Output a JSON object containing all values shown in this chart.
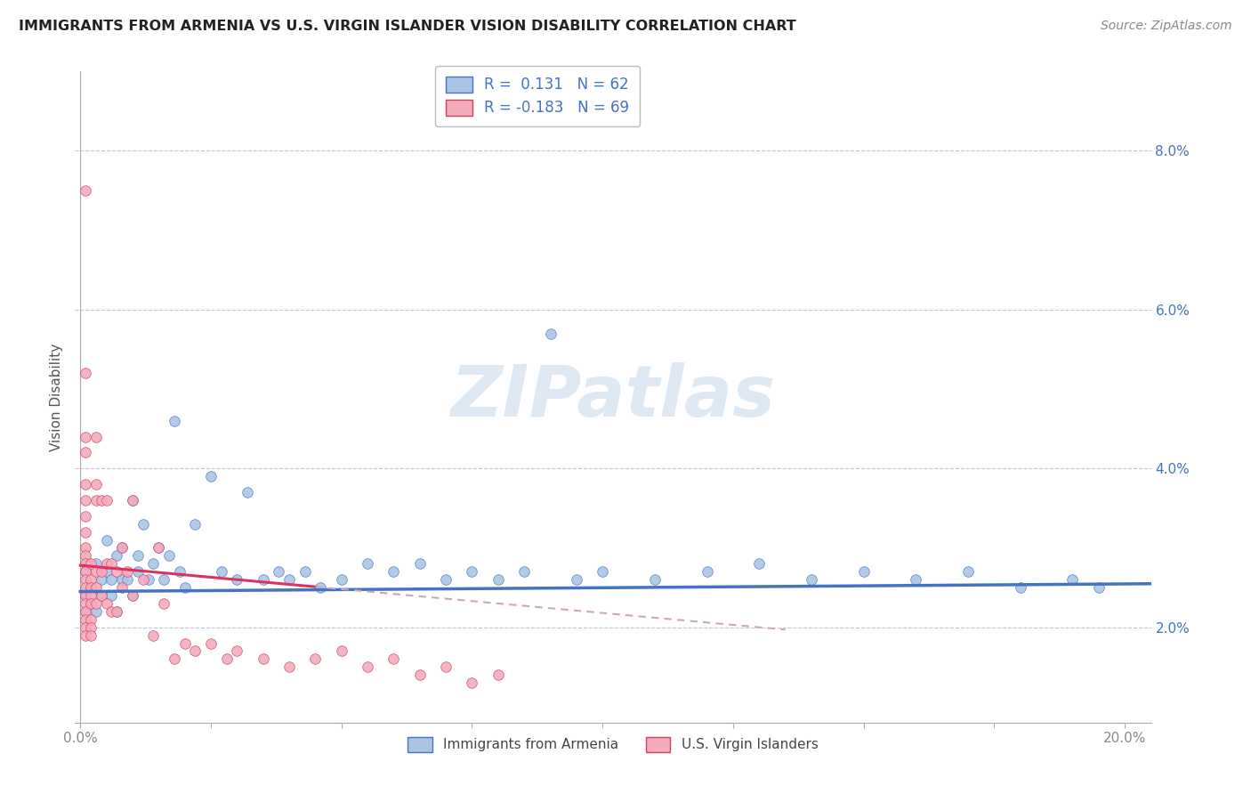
{
  "title": "IMMIGRANTS FROM ARMENIA VS U.S. VIRGIN ISLANDER VISION DISABILITY CORRELATION CHART",
  "source": "Source: ZipAtlas.com",
  "ylabel": "Vision Disability",
  "xlim": [
    -0.001,
    0.205
  ],
  "ylim": [
    0.008,
    0.09
  ],
  "xticks": [
    0.0,
    0.025,
    0.05,
    0.075,
    0.1,
    0.125,
    0.15,
    0.175,
    0.2
  ],
  "xtick_labels_shown": {
    "0.0": "0.0%",
    "0.20": "20.0%"
  },
  "yticks": [
    0.02,
    0.04,
    0.06,
    0.08
  ],
  "ytick_labels": [
    "2.0%",
    "4.0%",
    "6.0%",
    "8.0%"
  ],
  "blue_face_color": "#aac4e4",
  "blue_edge_color": "#4472c4",
  "pink_face_color": "#f4aabb",
  "pink_edge_color": "#d04060",
  "blue_line_color": "#4472c4",
  "pink_line_color": "#e03060",
  "gray_dash_color": "#ccaaaa",
  "legend_R_blue": "R =  0.131",
  "legend_N_blue": "N = 62",
  "legend_R_pink": "R = -0.183",
  "legend_N_pink": "N = 69",
  "blue_intercept": 0.0245,
  "blue_slope": 0.0048,
  "pink_intercept": 0.0278,
  "pink_slope": -0.06,
  "watermark": "ZIPatlas",
  "watermark_color": "#c0d4e8",
  "background_color": "#ffffff",
  "blue_x": [
    0.001,
    0.001,
    0.001,
    0.002,
    0.002,
    0.003,
    0.003,
    0.004,
    0.004,
    0.005,
    0.005,
    0.006,
    0.006,
    0.007,
    0.007,
    0.008,
    0.008,
    0.009,
    0.01,
    0.01,
    0.011,
    0.011,
    0.012,
    0.013,
    0.014,
    0.015,
    0.016,
    0.017,
    0.018,
    0.019,
    0.02,
    0.022,
    0.025,
    0.027,
    0.03,
    0.032,
    0.035,
    0.038,
    0.04,
    0.043,
    0.046,
    0.05,
    0.055,
    0.06,
    0.065,
    0.07,
    0.075,
    0.08,
    0.085,
    0.09,
    0.095,
    0.1,
    0.11,
    0.12,
    0.13,
    0.14,
    0.15,
    0.16,
    0.17,
    0.18,
    0.19,
    0.195
  ],
  "blue_y": [
    0.027,
    0.024,
    0.022,
    0.025,
    0.023,
    0.028,
    0.022,
    0.026,
    0.024,
    0.031,
    0.027,
    0.026,
    0.024,
    0.029,
    0.022,
    0.026,
    0.03,
    0.026,
    0.036,
    0.024,
    0.027,
    0.029,
    0.033,
    0.026,
    0.028,
    0.03,
    0.026,
    0.029,
    0.046,
    0.027,
    0.025,
    0.033,
    0.039,
    0.027,
    0.026,
    0.037,
    0.026,
    0.027,
    0.026,
    0.027,
    0.025,
    0.026,
    0.028,
    0.027,
    0.028,
    0.026,
    0.027,
    0.026,
    0.027,
    0.057,
    0.026,
    0.027,
    0.026,
    0.027,
    0.028,
    0.026,
    0.027,
    0.026,
    0.027,
    0.025,
    0.026,
    0.025
  ],
  "pink_x": [
    0.001,
    0.001,
    0.001,
    0.001,
    0.001,
    0.001,
    0.001,
    0.001,
    0.001,
    0.001,
    0.001,
    0.001,
    0.001,
    0.001,
    0.001,
    0.001,
    0.001,
    0.001,
    0.001,
    0.001,
    0.002,
    0.002,
    0.002,
    0.002,
    0.002,
    0.002,
    0.002,
    0.002,
    0.003,
    0.003,
    0.003,
    0.003,
    0.003,
    0.003,
    0.004,
    0.004,
    0.004,
    0.005,
    0.005,
    0.005,
    0.006,
    0.006,
    0.007,
    0.007,
    0.008,
    0.008,
    0.009,
    0.01,
    0.01,
    0.012,
    0.014,
    0.015,
    0.016,
    0.018,
    0.02,
    0.022,
    0.025,
    0.028,
    0.03,
    0.035,
    0.04,
    0.045,
    0.05,
    0.055,
    0.06,
    0.065,
    0.07,
    0.075,
    0.08
  ],
  "pink_y": [
    0.075,
    0.052,
    0.044,
    0.042,
    0.038,
    0.036,
    0.034,
    0.032,
    0.03,
    0.029,
    0.028,
    0.027,
    0.026,
    0.025,
    0.024,
    0.023,
    0.022,
    0.021,
    0.02,
    0.019,
    0.028,
    0.026,
    0.025,
    0.024,
    0.023,
    0.021,
    0.02,
    0.019,
    0.044,
    0.038,
    0.036,
    0.027,
    0.025,
    0.023,
    0.036,
    0.027,
    0.024,
    0.036,
    0.028,
    0.023,
    0.028,
    0.022,
    0.027,
    0.022,
    0.03,
    0.025,
    0.027,
    0.036,
    0.024,
    0.026,
    0.019,
    0.03,
    0.023,
    0.016,
    0.018,
    0.017,
    0.018,
    0.016,
    0.017,
    0.016,
    0.015,
    0.016,
    0.017,
    0.015,
    0.016,
    0.014,
    0.015,
    0.013,
    0.014
  ]
}
